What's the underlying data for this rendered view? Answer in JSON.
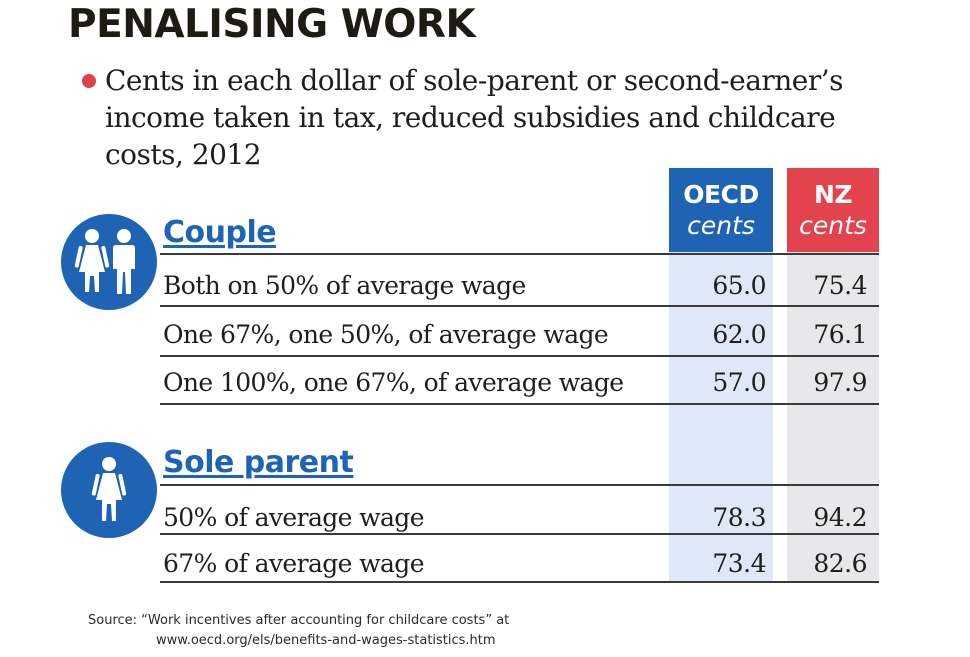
{
  "title": "PENALISING WORK",
  "subtitle": "Cents in each dollar of sole-parent or second-earner’s income taken in tax, reduced subsidies and childcare costs, 2012",
  "columns": {
    "oecd": {
      "label": "OECD",
      "unit": "cents",
      "color": "#1f63b4"
    },
    "nz": {
      "label": "NZ",
      "unit": "cents",
      "color": "#e3434d"
    }
  },
  "sections": [
    {
      "heading": "Couple",
      "icon": "couple-icon",
      "rows": [
        {
          "label": "Both on 50% of average wage",
          "oecd": "65.0",
          "nz": "75.4"
        },
        {
          "label": "One 67%, one 50%, of average wage",
          "oecd": "62.0",
          "nz": "76.1"
        },
        {
          "label": "One 100%, one 67%, of average wage",
          "oecd": "57.0",
          "nz": "97.9"
        }
      ]
    },
    {
      "heading": "Sole parent",
      "icon": "woman-icon",
      "rows": [
        {
          "label": "50% of average wage",
          "oecd": "78.3",
          "nz": "94.2"
        },
        {
          "label": "67% of average wage",
          "oecd": "73.4",
          "nz": "82.6"
        }
      ]
    }
  ],
  "source": {
    "prefix": "Source:",
    "text": "“Work incentives after accounting for childcare costs” at",
    "url": "www.oecd.org/els/benefits-and-wages-statistics.htm"
  },
  "chart_data": {
    "type": "table",
    "title": "PENALISING WORK",
    "subtitle": "Cents in each dollar of sole-parent or second-earner’s income taken in tax, reduced subsidies and childcare costs, 2012",
    "columns": [
      "OECD cents",
      "NZ cents"
    ],
    "groups": [
      {
        "name": "Couple",
        "rows": [
          {
            "label": "Both on 50% of average wage",
            "values": [
              65.0,
              75.4
            ]
          },
          {
            "label": "One 67%, one 50%, of average wage",
            "values": [
              62.0,
              76.1
            ]
          },
          {
            "label": "One 100%, one 67%, of average wage",
            "values": [
              57.0,
              97.9
            ]
          }
        ]
      },
      {
        "name": "Sole parent",
        "rows": [
          {
            "label": "50% of average wage",
            "values": [
              78.3,
              94.2
            ]
          },
          {
            "label": "67% of average wage",
            "values": [
              73.4,
              82.6
            ]
          }
        ]
      }
    ]
  }
}
